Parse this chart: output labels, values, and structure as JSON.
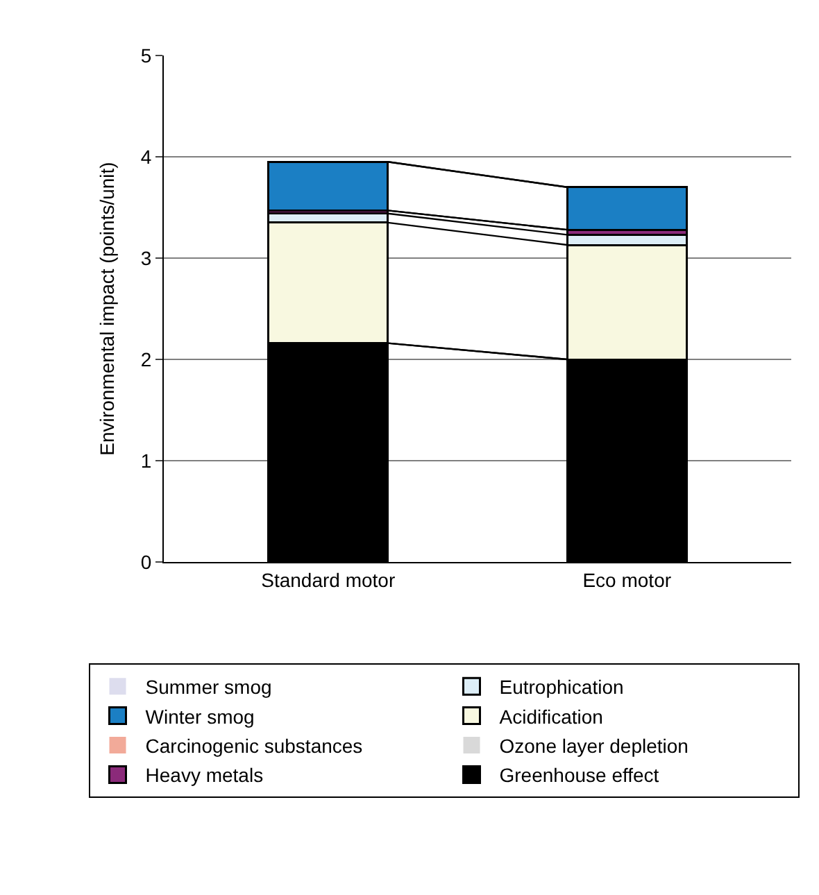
{
  "chart_data": {
    "type": "bar",
    "stacked": true,
    "ylabel": "Environmental impact (points/unit)",
    "categories": [
      "Standard motor",
      "Eco motor"
    ],
    "series": [
      {
        "name": "Greenhouse effect",
        "color": "#000000",
        "values": [
          2.16,
          2.0
        ]
      },
      {
        "name": "Ozone layer depletion",
        "color": "#d9d9d9",
        "values": [
          0,
          0
        ]
      },
      {
        "name": "Acidification",
        "color": "#f8f8e0",
        "values": [
          1.19,
          1.13
        ]
      },
      {
        "name": "Eutrophication",
        "color": "#ddeef7",
        "values": [
          0.09,
          0.1
        ]
      },
      {
        "name": "Heavy metals",
        "color": "#8b2a7a",
        "values": [
          0.03,
          0.05
        ]
      },
      {
        "name": "Carcinogenic substances",
        "color": "#f2aa99",
        "values": [
          0,
          0
        ]
      },
      {
        "name": "Winter smog",
        "color": "#1b7fc4",
        "values": [
          0.48,
          0.42
        ]
      },
      {
        "name": "Summer smog",
        "color": "#ddddee",
        "values": [
          0,
          0
        ]
      }
    ],
    "ylim": [
      0,
      5
    ],
    "yticks": [
      0,
      1,
      2,
      3,
      4,
      5
    ],
    "grid": "y",
    "legend": "bottom"
  }
}
